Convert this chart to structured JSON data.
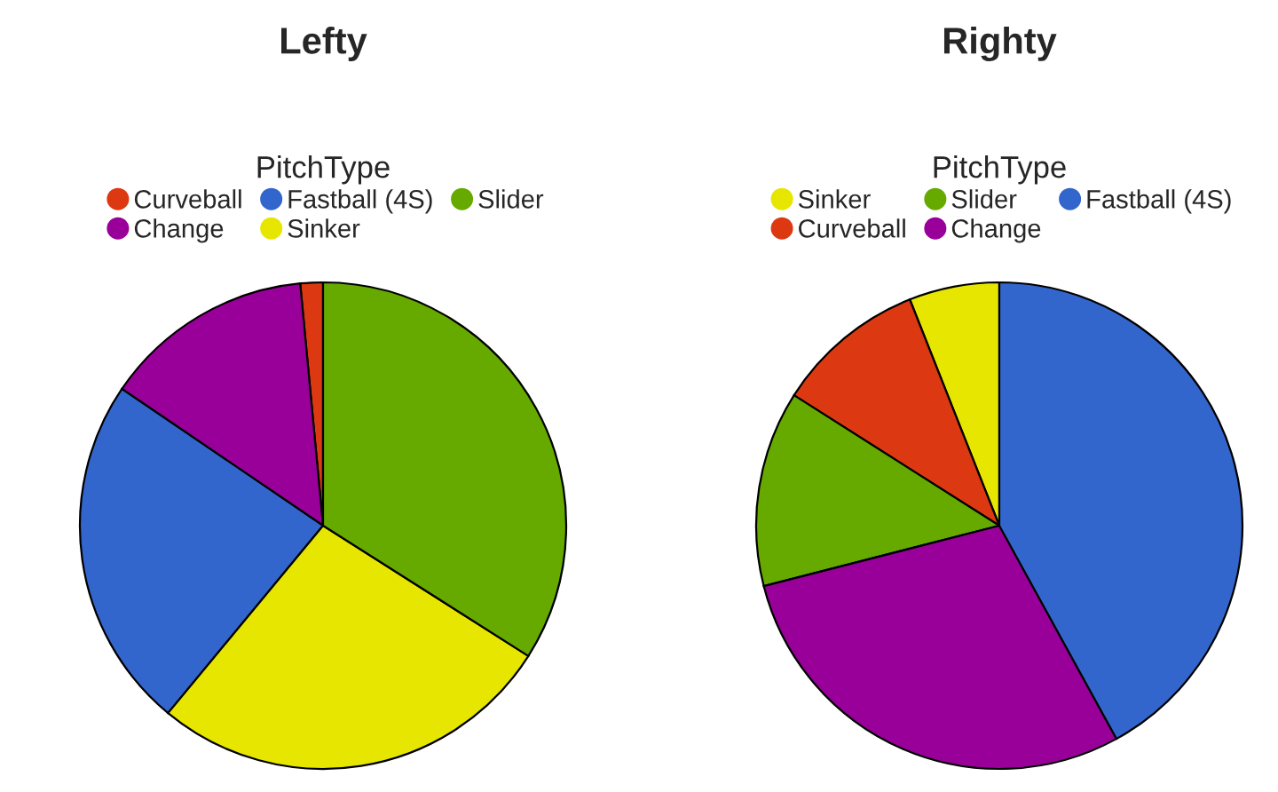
{
  "chart_data": [
    {
      "type": "pie",
      "title": "Lefty",
      "legend_title": "PitchType",
      "legend": "top",
      "categories": [
        "Curveball",
        "Change",
        "Fastball (4S)",
        "Sinker",
        "Slider"
      ],
      "values": [
        1.5,
        14,
        23.5,
        27,
        34
      ],
      "colors": [
        "#dc3912",
        "#990099",
        "#3366cc",
        "#e6e600",
        "#66aa00"
      ]
    },
    {
      "type": "pie",
      "title": "Righty",
      "legend_title": "PitchType",
      "legend": "top",
      "categories": [
        "Sinker",
        "Curveball",
        "Slider",
        "Change",
        "Fastball (4S)"
      ],
      "values": [
        6,
        10,
        13,
        29,
        42
      ],
      "colors": [
        "#e6e600",
        "#dc3912",
        "#66aa00",
        "#990099",
        "#3366cc"
      ]
    }
  ]
}
